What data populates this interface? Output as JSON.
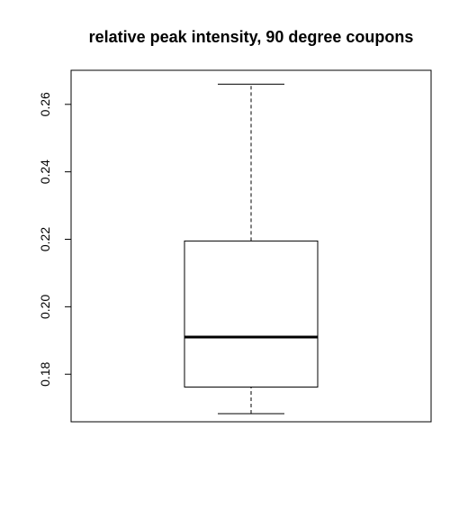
{
  "chart_data": {
    "type": "boxplot",
    "title": "relative peak intensity, 90 degree coupons",
    "xlabel": "",
    "ylabel": "",
    "ylim": [
      0.1659,
      0.2701
    ],
    "yticks": [
      0.18,
      0.2,
      0.22,
      0.24,
      0.26
    ],
    "ytick_labels": [
      "0.18",
      "0.20",
      "0.22",
      "0.24",
      "0.26"
    ],
    "grid": false,
    "box": {
      "whisker_low": 0.1683,
      "q1": 0.1762,
      "median": 0.191,
      "q3": 0.2195,
      "whisker_high": 0.266
    }
  }
}
